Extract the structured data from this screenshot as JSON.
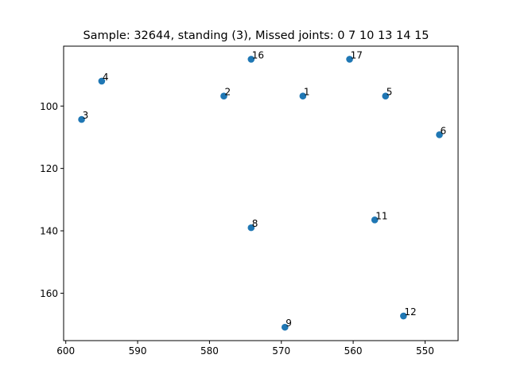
{
  "chart_data": {
    "type": "scatter",
    "title": "Sample: 32644, standing (3), Missed joints: 0  7  10  13  14  15",
    "xlabel": "",
    "ylabel": "",
    "xlim": [
      600.3,
      545.4
    ],
    "ylim": [
      175.2,
      80.8
    ],
    "x_inverted": true,
    "y_inverted": true,
    "grid": false,
    "marker_color": "#1f77b4",
    "xticks": [
      600,
      590,
      580,
      570,
      560,
      550
    ],
    "yticks": [
      100,
      120,
      140,
      160
    ],
    "points": [
      {
        "label": "1",
        "x": 567.0,
        "y": 96.8
      },
      {
        "label": "2",
        "x": 578.0,
        "y": 96.8
      },
      {
        "label": "3",
        "x": 597.8,
        "y": 104.3
      },
      {
        "label": "4",
        "x": 595.0,
        "y": 92.0
      },
      {
        "label": "5",
        "x": 555.5,
        "y": 96.8
      },
      {
        "label": "6",
        "x": 548.0,
        "y": 109.2
      },
      {
        "label": "8",
        "x": 574.2,
        "y": 139.0
      },
      {
        "label": "9",
        "x": 569.5,
        "y": 170.9
      },
      {
        "label": "11",
        "x": 557.0,
        "y": 136.5
      },
      {
        "label": "12",
        "x": 553.0,
        "y": 167.3
      },
      {
        "label": "16",
        "x": 574.2,
        "y": 85.0
      },
      {
        "label": "17",
        "x": 560.5,
        "y": 85.0
      }
    ]
  }
}
